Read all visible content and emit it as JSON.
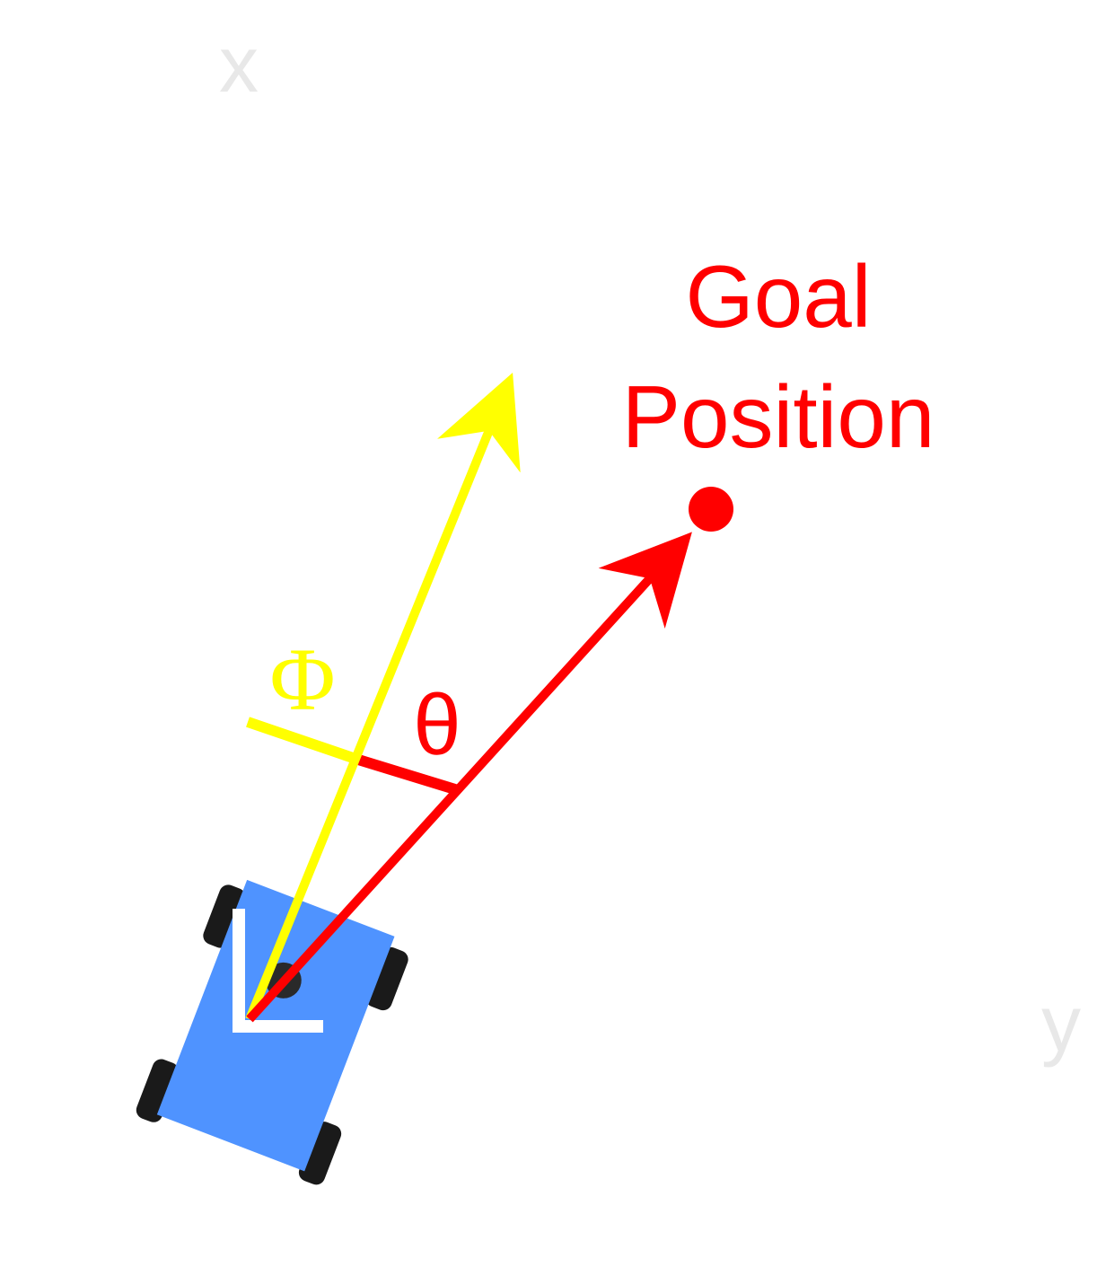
{
  "axes": {
    "x_label": "x",
    "y_label": "y"
  },
  "goal": {
    "label_line1": "Goal",
    "label_line2": "Position"
  },
  "angles": {
    "phi_label": "Φ",
    "theta_label": "θ"
  },
  "colors": {
    "axis_label": "#e8e8e8",
    "goal": "#ff0000",
    "heading": "#ffff00",
    "robot_body": "#4f93ff",
    "wheels": "#1a1a1a",
    "frame_marker": "#ffffff"
  },
  "icons": {
    "robot": "robot-car-icon",
    "goal_marker": "goal-dot-icon"
  }
}
